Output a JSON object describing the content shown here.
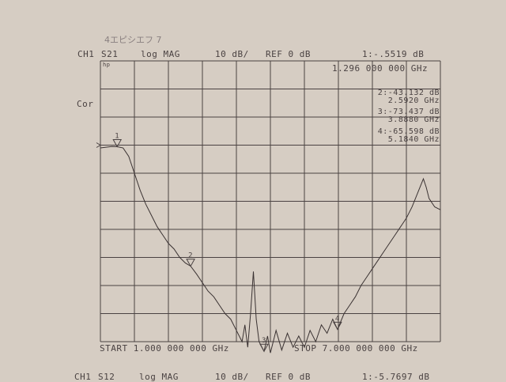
{
  "annotation": "4エピシエフ 7",
  "header": {
    "channel": "CH1",
    "param": "S21",
    "format": "log MAG",
    "scale": "10 dB/",
    "ref": "REF 0 dB",
    "marker_readout": "1:-.5519  dB",
    "marker_freq": "1.296 000 000 GHz"
  },
  "left_labels": {
    "logo": "hp",
    "cor": "Cor"
  },
  "markers": [
    {
      "id": "1",
      "freq_ghz": 1.296,
      "db": -0.5519
    },
    {
      "id": "2",
      "freq_ghz": 2.592,
      "db": -43.132,
      "label": "2:-43.132 dB",
      "freq_label": "2.5920 GHz"
    },
    {
      "id": "3",
      "freq_ghz": 3.888,
      "db": -73.437,
      "label": "3:-73.437 dB",
      "freq_label": "3.8880 GHz"
    },
    {
      "id": "4",
      "freq_ghz": 5.184,
      "db": -65.598,
      "label": "4:-65.598 dB",
      "freq_label": "5.1840 GHz"
    }
  ],
  "footer": {
    "start": "START  1.000 000 000 GHz",
    "stop": "STOP  7.000 000 000 GHz"
  },
  "next_header": {
    "channel": "CH1",
    "param": "S12",
    "format": "log MAG",
    "scale": "10 dB/",
    "ref": "REF 0 dB",
    "marker_readout": "1:-5.7697 dB"
  },
  "colors": {
    "paper": "#d6cdc3",
    "ink": "#4a4242"
  },
  "chart_data": {
    "type": "line",
    "xlabel": "",
    "ylabel": "",
    "xlim": [
      1.0,
      7.0
    ],
    "ylim": [
      -70,
      30
    ],
    "x_divisions": 10,
    "y_divisions": 10,
    "grid": true,
    "reference_db": 0,
    "series": [
      {
        "x": [
          1.0,
          1.2,
          1.296,
          1.4,
          1.5,
          1.6,
          1.7,
          1.8,
          1.9,
          2.0,
          2.1,
          2.2,
          2.3,
          2.4,
          2.5,
          2.592,
          2.7,
          2.8,
          2.9,
          3.0,
          3.1,
          3.2,
          3.3,
          3.4,
          3.5,
          3.55,
          3.6,
          3.65,
          3.7,
          3.75,
          3.8,
          3.888,
          3.95,
          4.0,
          4.1,
          4.2,
          4.3,
          4.4,
          4.5,
          4.6,
          4.7,
          4.8,
          4.9,
          5.0,
          5.1,
          5.184,
          5.3,
          5.4,
          5.5,
          5.6,
          5.7,
          5.8,
          5.9,
          6.0,
          6.1,
          6.2,
          6.3,
          6.4,
          6.5,
          6.6,
          6.7,
          6.75,
          6.8,
          6.9,
          7.0
        ],
        "y": [
          -1,
          -0.5,
          -0.55,
          -1,
          -4,
          -10,
          -16,
          -21,
          -25,
          -29,
          -32,
          -35,
          -37,
          -40,
          -42,
          -43.1,
          -46,
          -49,
          -52,
          -54,
          -57,
          -60,
          -62,
          -66,
          -70,
          -64,
          -72,
          -60,
          -45,
          -62,
          -70,
          -73.4,
          -68,
          -74,
          -66,
          -73,
          -67,
          -72,
          -68,
          -72,
          -66,
          -70,
          -64,
          -67,
          -62,
          -65.6,
          -60,
          -57,
          -54,
          -50,
          -47,
          -44,
          -41,
          -38,
          -35,
          -32,
          -29,
          -26,
          -22,
          -17,
          -12,
          -15,
          -19,
          -22,
          -23
        ]
      }
    ]
  }
}
